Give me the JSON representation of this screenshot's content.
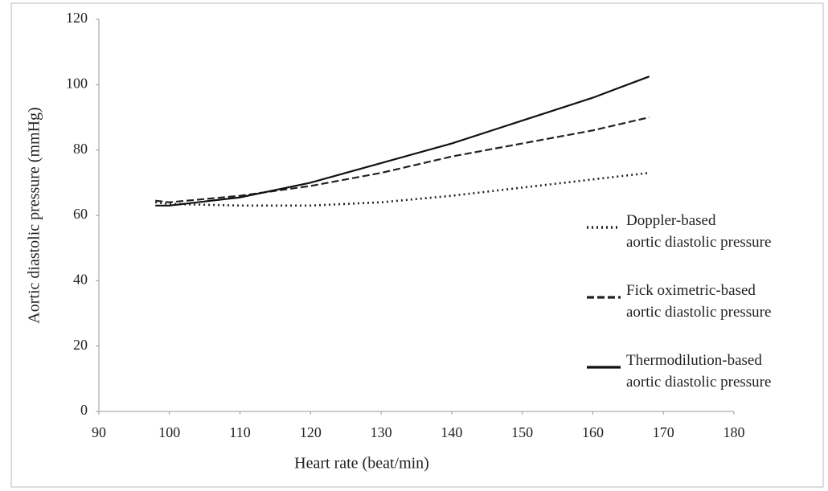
{
  "chart_data": {
    "type": "line",
    "x_label": "Heart rate (beat/min)",
    "y_label": "Aortic diastolic pressure (mmHg)",
    "x": [
      98,
      100,
      110,
      120,
      130,
      140,
      150,
      160,
      168
    ],
    "series": [
      {
        "name": "Doppler-based\naortic diastolic pressure",
        "color": "#222222",
        "style": "dotted",
        "values": [
          64,
          63.5,
          63,
          63,
          64,
          66,
          68.5,
          71,
          73
        ]
      },
      {
        "name": "Fick oximetric-based\naortic diastolic pressure",
        "color": "#222222",
        "style": "dashed",
        "values": [
          64.5,
          64,
          66,
          69,
          73,
          78,
          82,
          86,
          90
        ]
      },
      {
        "name": "Thermodilution-based\naortic diastolic pressure",
        "color": "#111111",
        "style": "solid",
        "values": [
          63,
          63,
          65.5,
          70,
          76,
          82,
          89,
          96,
          102.5
        ]
      }
    ],
    "xlim": [
      90,
      180
    ],
    "xticks": [
      90,
      100,
      110,
      120,
      130,
      140,
      150,
      160,
      170,
      180
    ],
    "ylim": [
      0,
      120
    ],
    "yticks": [
      0,
      20,
      40,
      60,
      80,
      100,
      120
    ],
    "grid": false,
    "legend": "right"
  }
}
